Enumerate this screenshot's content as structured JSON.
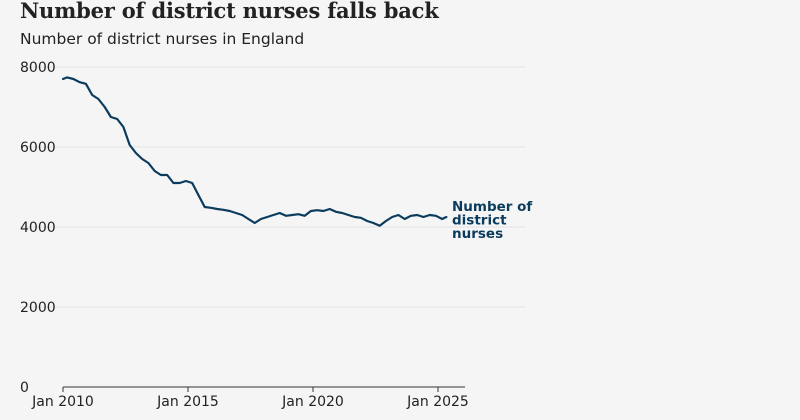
{
  "chart_data": {
    "type": "line",
    "title": "Number of district nurses falls back",
    "subtitle": "Number of district nurses in England",
    "xlabel": "",
    "ylabel": "",
    "ylim": [
      0,
      8000
    ],
    "yticks": [
      0,
      2000,
      4000,
      6000,
      8000
    ],
    "xlim": [
      "2010-01",
      "2025-06"
    ],
    "xtick_labels": [
      "Jan 2010",
      "Jan 2015",
      "Jan 2020",
      "Jan 2025"
    ],
    "grid": true,
    "legend": "none",
    "line_color": "#0b3c5d",
    "series": [
      {
        "name": "Number of district nurses",
        "x": [
          "2010-01",
          "2010-03",
          "2010-06",
          "2010-09",
          "2010-12",
          "2011-03",
          "2011-06",
          "2011-09",
          "2011-12",
          "2012-03",
          "2012-06",
          "2012-09",
          "2012-12",
          "2013-03",
          "2013-06",
          "2013-09",
          "2013-12",
          "2014-03",
          "2014-06",
          "2014-09",
          "2014-12",
          "2015-03",
          "2015-06",
          "2015-09",
          "2015-12",
          "2016-03",
          "2016-06",
          "2016-09",
          "2016-12",
          "2017-03",
          "2017-06",
          "2017-09",
          "2017-12",
          "2018-03",
          "2018-06",
          "2018-09",
          "2018-12",
          "2019-03",
          "2019-06",
          "2019-09",
          "2019-12",
          "2020-03",
          "2020-06",
          "2020-09",
          "2020-12",
          "2021-03",
          "2021-06",
          "2021-09",
          "2021-12",
          "2022-03",
          "2022-06",
          "2022-09",
          "2022-12",
          "2023-03",
          "2023-06",
          "2023-09",
          "2023-12",
          "2024-03",
          "2024-06",
          "2024-09",
          "2024-12",
          "2025-03",
          "2025-05"
        ],
        "values": [
          7700,
          7740,
          7700,
          7620,
          7580,
          7300,
          7200,
          7000,
          6750,
          6700,
          6500,
          6050,
          5850,
          5700,
          5600,
          5400,
          5300,
          5300,
          5100,
          5100,
          5150,
          5100,
          4800,
          4500,
          4480,
          4450,
          4430,
          4400,
          4350,
          4300,
          4200,
          4100,
          4200,
          4250,
          4300,
          4350,
          4280,
          4300,
          4320,
          4280,
          4400,
          4420,
          4400,
          4450,
          4380,
          4350,
          4300,
          4250,
          4230,
          4150,
          4100,
          4030,
          4150,
          4250,
          4300,
          4200,
          4280,
          4300,
          4250,
          4300,
          4280,
          4200,
          4250
        ]
      }
    ],
    "series_label_lines": [
      "Number of",
      "district",
      "nurses"
    ]
  }
}
